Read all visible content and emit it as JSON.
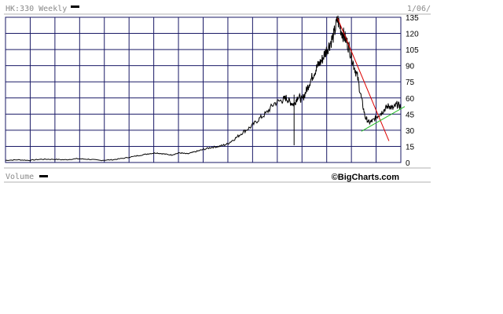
{
  "header": {
    "ticker_label": "HK:330 Weekly",
    "date_label": "1/06/"
  },
  "footer": {
    "volume_label": "Volume",
    "brand": "©BigCharts.com"
  },
  "colors": {
    "grid": "#1a1a66",
    "price": "#000000",
    "downtrend": "#dd0000",
    "uptrend": "#22bb22",
    "separator": "#b0b0b0"
  },
  "chart_data": {
    "type": "line",
    "title": "",
    "xlabel": "",
    "ylabel": "",
    "ylim": [
      0,
      135
    ],
    "xlim": [
      0,
      100
    ],
    "y_ticks": [
      0,
      15,
      30,
      45,
      60,
      75,
      90,
      105,
      120,
      135
    ],
    "grid": true,
    "axis_position": "right",
    "series": [
      {
        "style": "price",
        "x": [
          0,
          3,
          6,
          9,
          12,
          15,
          18,
          21,
          24,
          27,
          30,
          33,
          36,
          38,
          40,
          42,
          44,
          46,
          48,
          50,
          52,
          54,
          56,
          58,
          60,
          62,
          64,
          66,
          68,
          70,
          71,
          72,
          73,
          74,
          75,
          76,
          77,
          78,
          79,
          80,
          81,
          82,
          83,
          84,
          85,
          86,
          87,
          88,
          89,
          90,
          91,
          92,
          93,
          94,
          95,
          96,
          97,
          98,
          99,
          100
        ],
        "y": [
          2,
          2.5,
          2,
          3,
          3,
          2.5,
          3.5,
          3,
          2,
          2.5,
          4,
          6,
          8,
          9,
          8,
          7,
          9,
          8,
          10,
          12,
          14,
          15,
          17,
          22,
          28,
          33,
          40,
          46,
          55,
          58,
          60,
          56,
          54,
          62,
          58,
          66,
          75,
          83,
          90,
          95,
          103,
          110,
          118,
          133,
          122,
          115,
          106,
          92,
          80,
          60,
          42,
          37,
          39,
          43,
          46,
          50,
          53,
          50,
          54,
          52
        ]
      },
      {
        "style": "downtrend",
        "x": [
          84,
          97
        ],
        "y": [
          134,
          20
        ]
      },
      {
        "style": "uptrend",
        "x": [
          90,
          101
        ],
        "y": [
          29,
          52
        ]
      }
    ],
    "annotations": [
      {
        "type": "spike",
        "x": 73,
        "y_from": 63,
        "y_to": 16
      }
    ]
  }
}
